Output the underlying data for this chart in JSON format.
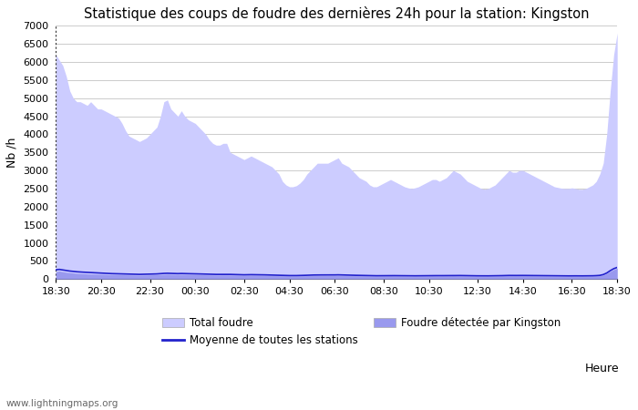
{
  "title": "Statistique des coups de foudre des dernières 24h pour la station: Kingston",
  "ylabel": "Nb /h",
  "xlabel": "Heure",
  "ylim": [
    0,
    7000
  ],
  "yticks": [
    0,
    500,
    1000,
    1500,
    2000,
    2500,
    3000,
    3500,
    4000,
    4500,
    5000,
    5500,
    6000,
    6500,
    7000
  ],
  "x_ticks_display": [
    "18:30",
    "20:30",
    "22:30",
    "00:30",
    "02:30",
    "04:30",
    "06:30",
    "08:30",
    "10:30",
    "12:30",
    "14:30",
    "16:30",
    "18:30"
  ],
  "total_foudre_color": "#ccccff",
  "kingston_color": "#9999ee",
  "moyenne_color": "#2222cc",
  "background_color": "#ffffff",
  "grid_color": "#cccccc",
  "watermark": "www.lightningmaps.org",
  "legend_total": "Total foudre",
  "legend_moyenne": "Moyenne de toutes les stations",
  "legend_kingston": "Foudre détectée par Kingston",
  "total_foudre": [
    6200,
    6050,
    5900,
    5600,
    5200,
    5000,
    4900,
    4900,
    4850,
    4800,
    4900,
    4800,
    4700,
    4700,
    4650,
    4600,
    4550,
    4500,
    4450,
    4300,
    4100,
    3950,
    3900,
    3850,
    3800,
    3850,
    3900,
    4000,
    4100,
    4200,
    4500,
    4900,
    4950,
    4700,
    4600,
    4500,
    4650,
    4500,
    4400,
    4350,
    4300,
    4200,
    4100,
    4000,
    3850,
    3750,
    3700,
    3700,
    3750,
    3750,
    3500,
    3450,
    3400,
    3350,
    3300,
    3350,
    3400,
    3350,
    3300,
    3250,
    3200,
    3150,
    3100,
    3000,
    2900,
    2700,
    2600,
    2550,
    2550,
    2580,
    2650,
    2750,
    2900,
    3000,
    3100,
    3200,
    3200,
    3200,
    3200,
    3250,
    3300,
    3350,
    3200,
    3150,
    3100,
    3000,
    2900,
    2800,
    2750,
    2700,
    2600,
    2550,
    2550,
    2600,
    2650,
    2700,
    2750,
    2700,
    2650,
    2600,
    2550,
    2520,
    2500,
    2520,
    2550,
    2600,
    2650,
    2700,
    2750,
    2750,
    2700,
    2750,
    2800,
    2900,
    3000,
    2950,
    2900,
    2800,
    2700,
    2650,
    2600,
    2550,
    2500,
    2480,
    2500,
    2550,
    2600,
    2700,
    2800,
    2900,
    3000,
    2950,
    2950,
    3000,
    3000,
    2950,
    2900,
    2850,
    2800,
    2750,
    2700,
    2650,
    2600,
    2550,
    2530,
    2510,
    2500,
    2500,
    2520,
    2500,
    2480,
    2480,
    2500,
    2550,
    2600,
    2700,
    2900,
    3200,
    4000,
    5200,
    6200,
    6800
  ],
  "kingston_foudre": [
    200,
    220,
    200,
    185,
    175,
    165,
    155,
    150,
    145,
    140,
    138,
    135,
    132,
    130,
    128,
    125,
    123,
    122,
    120,
    118,
    116,
    114,
    112,
    110,
    108,
    110,
    112,
    115,
    118,
    120,
    125,
    130,
    135,
    132,
    130,
    128,
    130,
    128,
    126,
    124,
    122,
    120,
    118,
    116,
    114,
    112,
    110,
    110,
    112,
    112,
    110,
    108,
    106,
    104,
    102,
    104,
    106,
    105,
    104,
    102,
    100,
    98,
    96,
    94,
    92,
    90,
    88,
    86,
    85,
    86,
    88,
    90,
    93,
    95,
    97,
    98,
    98,
    98,
    97,
    98,
    99,
    100,
    98,
    96,
    94,
    93,
    92,
    90,
    88,
    86,
    84,
    83,
    82,
    82,
    83,
    84,
    85,
    84,
    83,
    82,
    80,
    79,
    78,
    79,
    80,
    81,
    82,
    83,
    84,
    84,
    83,
    84,
    85,
    86,
    88,
    87,
    86,
    85,
    83,
    82,
    80,
    79,
    78,
    77,
    78,
    79,
    80,
    82,
    84,
    86,
    88,
    87,
    87,
    88,
    88,
    87,
    86,
    85,
    84,
    83,
    82,
    81,
    80,
    79,
    78,
    78,
    77,
    77,
    78,
    78,
    77,
    77,
    78,
    79,
    80,
    84,
    90,
    110,
    150,
    210,
    260,
    300
  ],
  "moyenne": [
    255,
    265,
    250,
    235,
    220,
    210,
    200,
    195,
    188,
    182,
    178,
    173,
    168,
    163,
    158,
    153,
    149,
    147,
    144,
    141,
    138,
    135,
    132,
    130,
    128,
    130,
    132,
    135,
    138,
    141,
    148,
    155,
    158,
    155,
    152,
    149,
    152,
    150,
    148,
    146,
    144,
    141,
    138,
    135,
    132,
    129,
    127,
    127,
    129,
    129,
    127,
    124,
    122,
    119,
    116,
    118,
    120,
    119,
    118,
    116,
    114,
    111,
    108,
    105,
    102,
    99,
    97,
    95,
    94,
    95,
    97,
    100,
    104,
    107,
    110,
    112,
    112,
    112,
    111,
    112,
    113,
    115,
    112,
    109,
    106,
    104,
    102,
    100,
    98,
    96,
    93,
    91,
    90,
    91,
    92,
    93,
    94,
    93,
    92,
    91,
    89,
    88,
    87,
    88,
    89,
    90,
    91,
    92,
    93,
    93,
    92,
    93,
    94,
    96,
    98,
    97,
    96,
    94,
    92,
    91,
    89,
    88,
    87,
    86,
    87,
    88,
    89,
    91,
    93,
    96,
    98,
    97,
    97,
    98,
    98,
    97,
    96,
    95,
    94,
    93,
    91,
    90,
    89,
    88,
    87,
    87,
    86,
    86,
    87,
    87,
    86,
    86,
    87,
    88,
    89,
    93,
    100,
    122,
    165,
    230,
    285,
    320
  ]
}
